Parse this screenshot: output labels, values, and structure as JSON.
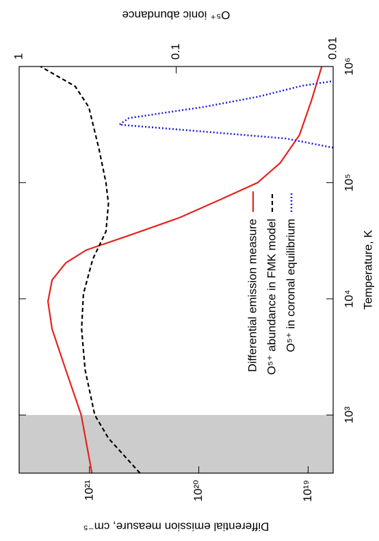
{
  "chart_data": {
    "type": "line",
    "x_label": "Temperature, K",
    "y_label": "Differential emission measure, cm⁻⁵",
    "y2_label": "O⁵⁺ ionic abundance",
    "xlog": true,
    "ylog": true,
    "y2log": true,
    "xlim": [
      316,
      1000000
    ],
    "ylim": [
      5.9e+18,
      4.4e+21
    ],
    "y2lim": [
      0.01,
      1
    ],
    "xticks": [
      {
        "value": 1000,
        "label": "10³"
      },
      {
        "value": 10000,
        "label": "10⁴"
      },
      {
        "value": 100000,
        "label": "10⁵"
      },
      {
        "value": 1000000,
        "label": "10⁶"
      }
    ],
    "yticks": [
      {
        "value": 1e+19,
        "label": "10¹⁹"
      },
      {
        "value": 1e+20,
        "label": "10²⁰"
      },
      {
        "value": 1e+21,
        "label": "10²¹"
      }
    ],
    "y2ticks": [
      1,
      0.1,
      0.01
    ],
    "shade": {
      "x": [
        316,
        1000
      ],
      "color": "#cccccc"
    },
    "legend": "lower right",
    "series": [
      {
        "name": "Differential emission measure",
        "color": "#e8211b",
        "dash": "solid",
        "x": [
          316,
          1000,
          2450,
          5500,
          9500,
          14500,
          20400,
          26300,
          35500,
          50000,
          70800,
          100000,
          148000,
          257000,
          513000,
          1000000
        ],
        "values": [
          9.5e+20,
          1.19e+21,
          1.65e+21,
          2.2e+21,
          2.4e+21,
          2.2e+21,
          1.65e+21,
          1.07e+21,
          4.2e+20,
          1.5e+20,
          6.5e+19,
          2.9e+19,
          1.8e+19,
          1.2e+19,
          9.3e+18,
          7.5e+18
        ]
      },
      {
        "name": "O⁵⁺ abundance in FMK model",
        "color": "#000000",
        "dash": "dashed",
        "axis": "y2",
        "x": [
          316,
          631,
          1000,
          2450,
          5500,
          11000,
          21900,
          38000,
          66100,
          100000,
          195000,
          447000,
          676000,
          891000,
          1000000
        ],
        "values": [
          0.17,
          0.27,
          0.33,
          0.38,
          0.4,
          0.39,
          0.34,
          0.28,
          0.27,
          0.28,
          0.31,
          0.36,
          0.44,
          0.63,
          0.73
        ]
      },
      {
        "name": "O⁵⁺ in coronal equilibrium",
        "color": "#1c1ce0",
        "dash": "dotted",
        "axis": "y2",
        "x": [
          200000,
          240000,
          275000,
          316000,
          360000,
          450000,
          550000,
          680000,
          750000
        ],
        "values": [
          0.01,
          0.02,
          0.066,
          0.23,
          0.2,
          0.066,
          0.03,
          0.016,
          0.01
        ]
      }
    ]
  }
}
